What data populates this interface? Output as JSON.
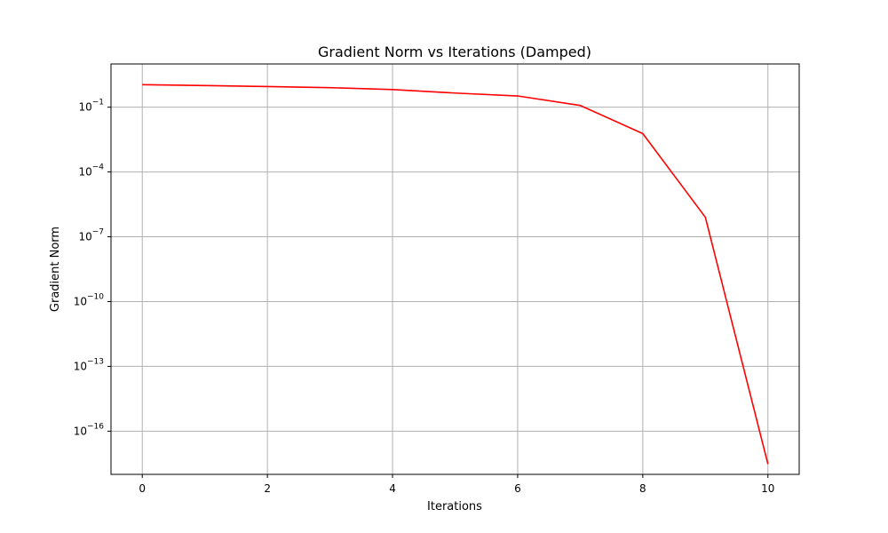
{
  "chart_data": {
    "type": "line",
    "title": "Gradient Norm vs Iterations (Damped)",
    "xlabel": "Iterations",
    "ylabel": "Gradient Norm",
    "xlim": [
      -0.5,
      10.5
    ],
    "ylim": [
      1e-18,
      10.0
    ],
    "yscale": "log",
    "grid": true,
    "xticks": [
      0,
      2,
      4,
      6,
      8,
      10
    ],
    "yticks": [
      {
        "base": "10",
        "exp": "−1",
        "value": 0.1
      },
      {
        "base": "10",
        "exp": "−4",
        "value": 0.0001
      },
      {
        "base": "10",
        "exp": "−7",
        "value": 1e-07
      },
      {
        "base": "10",
        "exp": "−10",
        "value": 1e-10
      },
      {
        "base": "10",
        "exp": "−13",
        "value": 1e-13
      },
      {
        "base": "10",
        "exp": "−16",
        "value": 1e-16
      }
    ],
    "series": [
      {
        "color": "#ff0000",
        "x": [
          0,
          1,
          2,
          3,
          4,
          5,
          6,
          7,
          8,
          9,
          10
        ],
        "y": [
          1.1,
          1.0,
          0.9,
          0.8,
          0.65,
          0.45,
          0.33,
          0.12,
          0.006,
          8e-07,
          3e-18
        ]
      }
    ]
  }
}
